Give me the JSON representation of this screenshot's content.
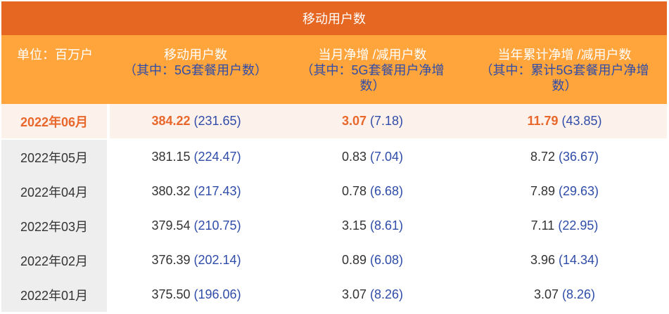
{
  "title": "移动用户数",
  "headers": [
    {
      "main": "单位：百万户",
      "sub": ""
    },
    {
      "main": "移动用户数",
      "sub": "（其中：5G套餐用户数）"
    },
    {
      "main": "当月净增 /减用户数",
      "sub": "（其中：5G套餐用户净增数）"
    },
    {
      "main": "当年累计净增 /减用户数",
      "sub": "（其中：累计5G套餐用户净增数）"
    }
  ],
  "rows": [
    {
      "month": "2022年06月",
      "users": "384.22",
      "users_5g": "(231.65)",
      "monthly": "3.07",
      "monthly_5g": "(7.18)",
      "ytd": "11.79",
      "ytd_5g": "(43.85)"
    },
    {
      "month": "2022年05月",
      "users": "381.15",
      "users_5g": "(224.47)",
      "monthly": "0.83",
      "monthly_5g": "(7.04)",
      "ytd": "8.72",
      "ytd_5g": "(36.67)"
    },
    {
      "month": "2022年04月",
      "users": "380.32",
      "users_5g": "(217.43)",
      "monthly": "0.78",
      "monthly_5g": "(6.68)",
      "ytd": "7.89",
      "ytd_5g": "(29.63)"
    },
    {
      "month": "2022年03月",
      "users": "379.54",
      "users_5g": "(210.75)",
      "monthly": "3.15",
      "monthly_5g": "(8.61)",
      "ytd": "7.11",
      "ytd_5g": "(22.95)"
    },
    {
      "month": "2022年02月",
      "users": "376.39",
      "users_5g": "(202.14)",
      "monthly": "0.89",
      "monthly_5g": "(6.08)",
      "ytd": "3.96",
      "ytd_5g": "(14.34)"
    },
    {
      "month": "2022年01月",
      "users": "375.50",
      "users_5g": "(196.06)",
      "monthly": "3.07",
      "monthly_5g": "(8.26)",
      "ytd": "3.07",
      "ytd_5g": "(8.26)"
    }
  ],
  "colors": {
    "title_bg": "#e66721",
    "header_bg": "#ffa53c",
    "highlight": "#e8672a",
    "sub_value": "#2f4ca8"
  }
}
